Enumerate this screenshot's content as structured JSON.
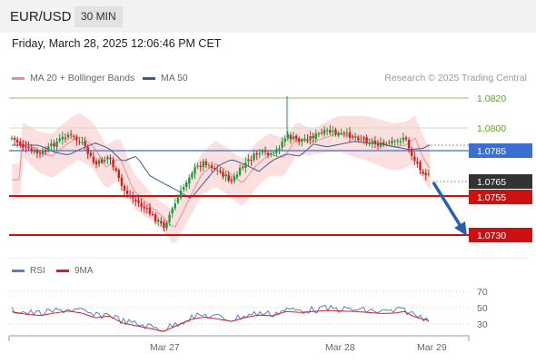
{
  "header": {
    "symbol": "EUR/USD",
    "timeframe": "30 MIN"
  },
  "datetime": "Friday, March 28, 2025 12:06:46 PM CET",
  "legend": {
    "ma20": {
      "label": "MA 20 + Bollinger Bands",
      "color": "#f08c8c"
    },
    "ma50": {
      "label": "MA 50",
      "color": "#3d5a99"
    }
  },
  "source": "Research © 2025 Trading Central",
  "levels": [
    {
      "value": "1.0820",
      "type": "resistance-green"
    },
    {
      "value": "1.0800",
      "type": "resistance-lightgreen"
    },
    {
      "value": "1.0785",
      "type": "pivot-blue"
    },
    {
      "value": "1.0765",
      "type": "last-price"
    },
    {
      "value": "1.0755",
      "type": "support-red"
    },
    {
      "value": "1.0730",
      "type": "support-red"
    }
  ],
  "rsi_legend": {
    "rsi": {
      "label": "RSI",
      "color": "#5b7fd0"
    },
    "ma9": {
      "label": "9MA",
      "color": "#d62020"
    }
  },
  "rsi_ticks": [
    "70",
    "50",
    "30"
  ],
  "x_labels": [
    "Mar 27",
    "Mar 28",
    "Mar 29"
  ],
  "colors": {
    "bull": "#1a9c3a",
    "bear": "#d81e1e",
    "pivot": "#3a6fcf",
    "support": "#cc1111",
    "resistance": "#6fae3c",
    "arrow": "#2a5fae"
  },
  "chart_data": {
    "type": "candlestick",
    "price_range": [
      1.0725,
      1.0825
    ],
    "rsi_range": [
      20,
      80
    ],
    "forecast": {
      "from": 1.0765,
      "to": 1.073,
      "direction": "down"
    }
  }
}
